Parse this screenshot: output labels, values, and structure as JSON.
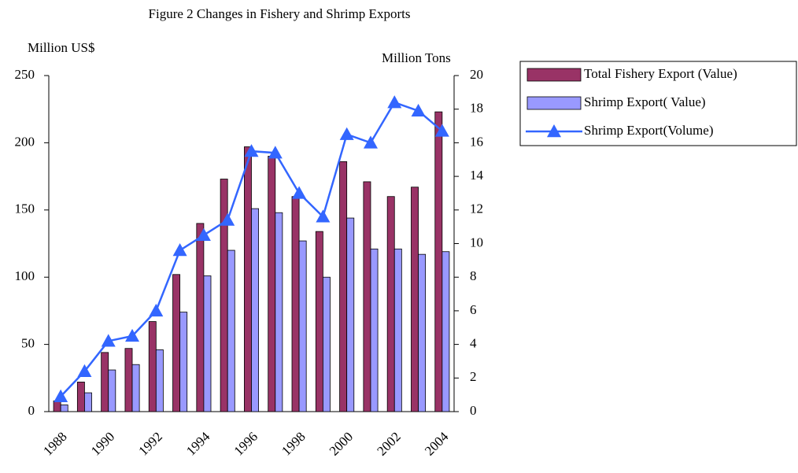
{
  "chart_data": {
    "type": "bar",
    "title": "Figure 2 Changes in Fishery and Shrimp Exports",
    "y_label": "Million US$",
    "y2_label": "Million Tons",
    "categories": [
      "1988",
      null,
      "1990",
      null,
      "1992",
      null,
      "1994",
      null,
      "1996",
      null,
      "1998",
      null,
      "2000",
      null,
      "2002",
      null,
      "2004"
    ],
    "series": [
      {
        "name": "Total Fishery Export (Value)",
        "type": "bar",
        "color": "#993366",
        "values": [
          8,
          22,
          44,
          47,
          67,
          102,
          140,
          173,
          197,
          190,
          160,
          134,
          186,
          171,
          160,
          167,
          223
        ]
      },
      {
        "name": "Shrimp Export( Value)",
        "type": "bar",
        "color": "#9999ff",
        "values": [
          5,
          14,
          31,
          35,
          46,
          74,
          101,
          120,
          151,
          148,
          127,
          100,
          144,
          121,
          121,
          117,
          119
        ]
      },
      {
        "name": "Shrimp Export(Volume)",
        "type": "line",
        "axis": "y2",
        "color": "#3366ff",
        "values": [
          0.9,
          2.4,
          4.2,
          4.5,
          6.0,
          9.6,
          10.5,
          11.4,
          15.5,
          15.4,
          13.0,
          11.6,
          16.5,
          16.0,
          18.4,
          17.9,
          16.7
        ]
      }
    ],
    "ylim": [
      0,
      250
    ],
    "yticks": [
      0,
      50,
      100,
      150,
      200,
      250
    ],
    "y2lim": [
      0,
      20
    ],
    "y2ticks": [
      0,
      2,
      4,
      6,
      8,
      10,
      12,
      14,
      16,
      18,
      20
    ],
    "grid": false,
    "legend": "right"
  }
}
